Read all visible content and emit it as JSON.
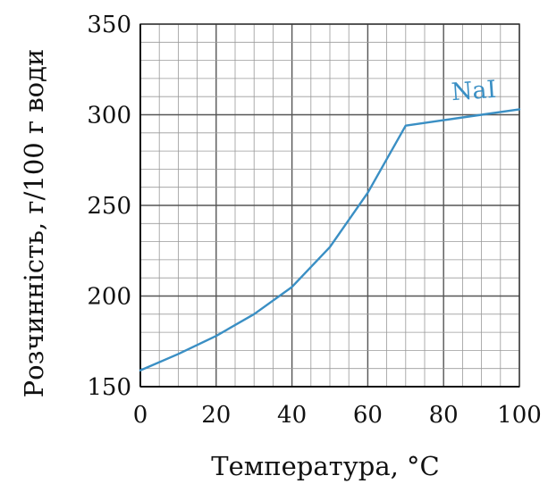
{
  "chart_data": {
    "type": "line",
    "xlabel": "Температура, °C",
    "ylabel": "Розчинність, г/100 г води",
    "xlim": [
      0,
      100
    ],
    "ylim": [
      150,
      350
    ],
    "x_major_ticks": [
      0,
      20,
      40,
      60,
      80,
      100
    ],
    "y_major_ticks": [
      150,
      200,
      250,
      300,
      350
    ],
    "x_tick_labels": [
      "0",
      "20",
      "40",
      "60",
      "80",
      "100"
    ],
    "y_tick_labels": [
      "150",
      "200",
      "250",
      "300",
      "350"
    ],
    "x_minor_step": 5,
    "y_minor_step": 10,
    "grid": true,
    "series": [
      {
        "name": "NaI",
        "color": "#3a8fc4",
        "x": [
          0,
          10,
          20,
          30,
          40,
          50,
          60,
          70,
          80,
          90,
          100
        ],
        "y": [
          159,
          168,
          178,
          190,
          205,
          227,
          257,
          294,
          297,
          300,
          303
        ]
      }
    ]
  }
}
